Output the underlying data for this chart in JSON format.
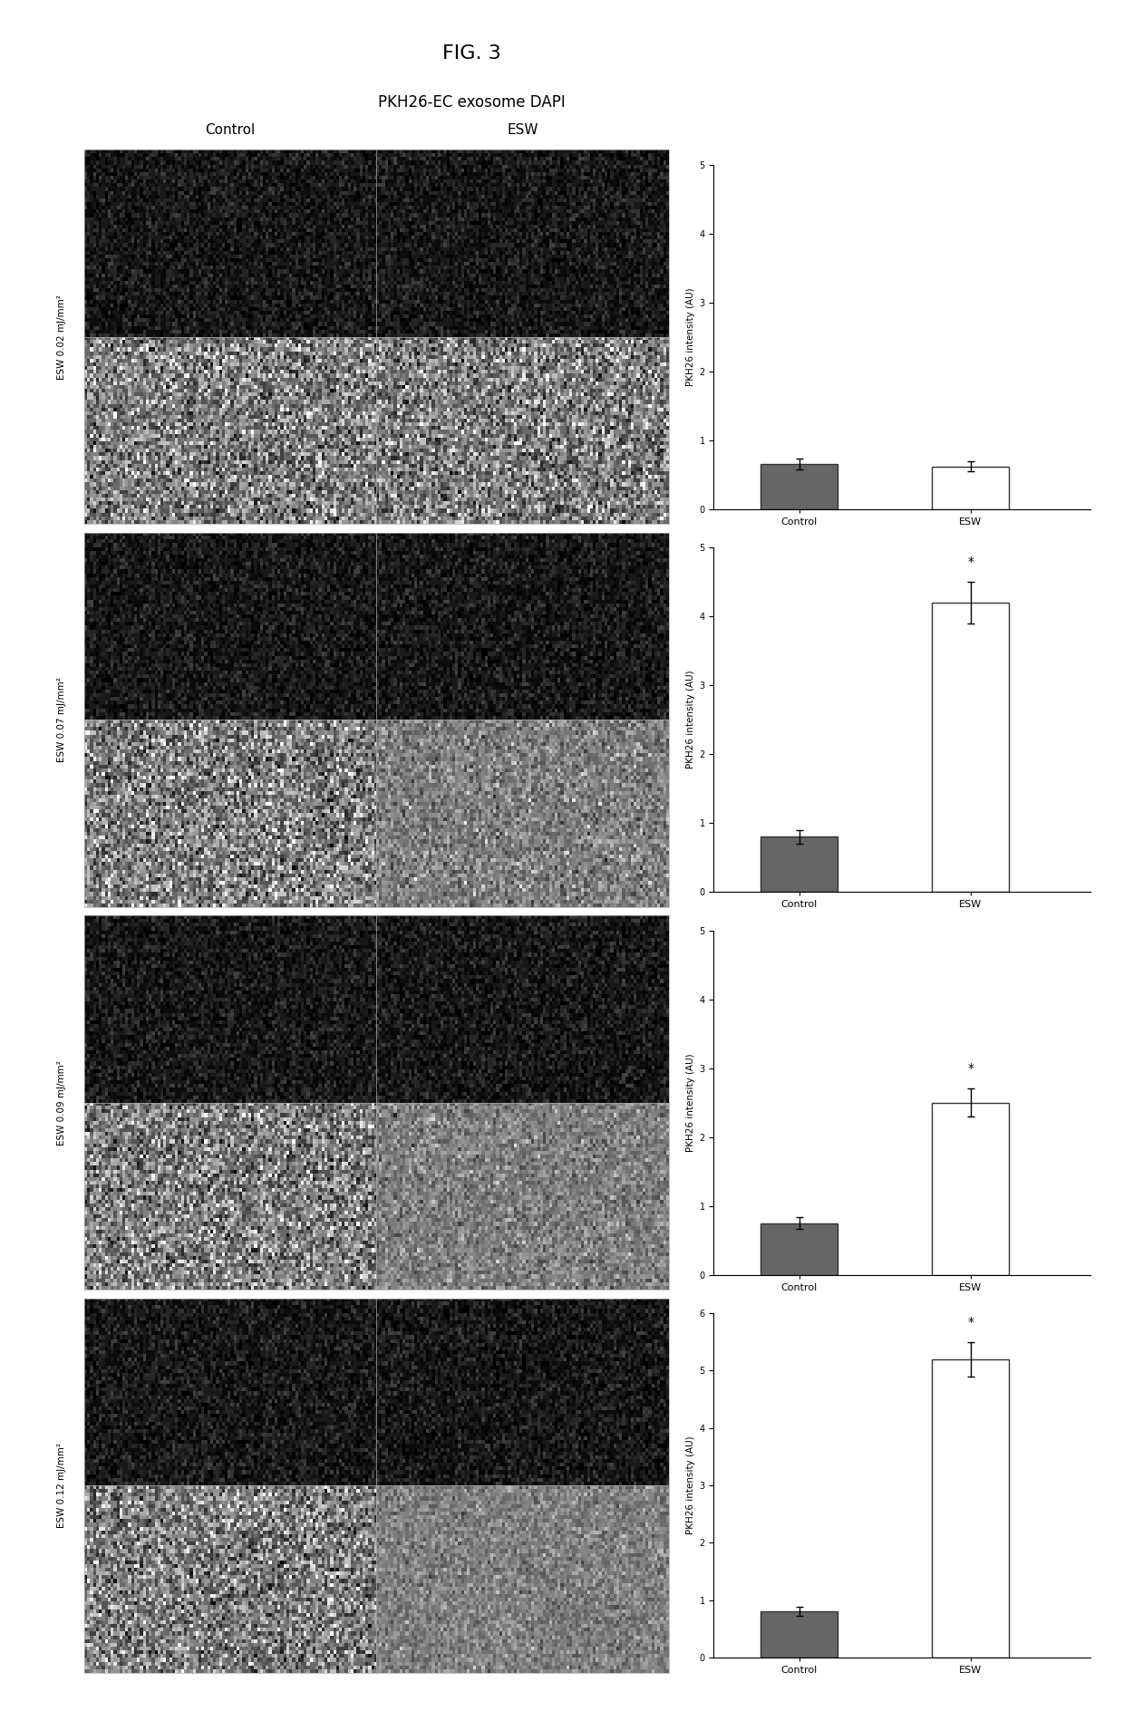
{
  "title": "FIG. 3",
  "subtitle": "PKH26-EC exosome DAPI",
  "col_labels": [
    "Control",
    "ESW"
  ],
  "row_labels": [
    "ESW 0.02 mJ/mm²",
    "ESW 0.07 mJ/mm²",
    "ESW 0.09 mJ/mm²",
    "ESW 0.12 mJ/mm²"
  ],
  "bar_ylabel": "PKH26 intensity (AU)",
  "bars": [
    {
      "control_val": 0.65,
      "control_err": 0.08,
      "esw_val": 0.62,
      "esw_err": 0.07,
      "ylim": [
        0,
        5
      ],
      "yticks": [
        0,
        1,
        2,
        3,
        4,
        5
      ],
      "significant": false
    },
    {
      "control_val": 0.8,
      "control_err": 0.1,
      "esw_val": 4.2,
      "esw_err": 0.3,
      "ylim": [
        0,
        5
      ],
      "yticks": [
        0,
        1,
        2,
        3,
        4,
        5
      ],
      "significant": true
    },
    {
      "control_val": 0.75,
      "control_err": 0.08,
      "esw_val": 2.5,
      "esw_err": 0.2,
      "ylim": [
        0,
        5
      ],
      "yticks": [
        0,
        1,
        2,
        3,
        4,
        5
      ],
      "significant": true
    },
    {
      "control_val": 0.8,
      "control_err": 0.08,
      "esw_val": 5.2,
      "esw_err": 0.3,
      "ylim": [
        0,
        6
      ],
      "yticks": [
        0,
        1,
        2,
        3,
        4,
        5,
        6
      ],
      "significant": true
    }
  ],
  "bar_color_control": "#666666",
  "bar_color_esw": "#ffffff",
  "bg_color": "#ffffff"
}
